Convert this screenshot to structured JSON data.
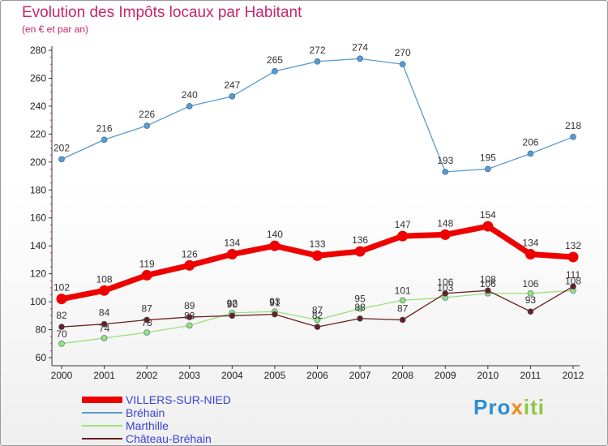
{
  "header": {
    "title": "Evolution des Impôts locaux par Habitant",
    "subtitle": "(en € et par an)"
  },
  "logo": {
    "text": "Proxiti",
    "colors": [
      "#2b8fd6",
      "#f08a1c",
      "#8cc63f"
    ]
  },
  "chart_data": {
    "type": "line",
    "title": "Evolution des Impôts locaux par Habitant",
    "subtitle": "(en € et par an)",
    "xlabel": "",
    "ylabel": "",
    "x": [
      "2000",
      "2001",
      "2002",
      "2003",
      "2004",
      "2005",
      "2006",
      "2007",
      "2008",
      "2009",
      "2010",
      "2011",
      "2012"
    ],
    "ylim": [
      60,
      280
    ],
    "yticks": [
      60,
      80,
      100,
      120,
      140,
      160,
      180,
      200,
      220,
      240,
      260,
      280
    ],
    "grid": false,
    "legend_position": "bottom-left",
    "series": [
      {
        "name": "VILLERS-SUR-NIED",
        "color": "#ee0000",
        "values": [
          102,
          108,
          119,
          126,
          134,
          140,
          133,
          136,
          147,
          148,
          154,
          134,
          132
        ]
      },
      {
        "name": "Bréhain",
        "color": "#5a9bd0",
        "values": [
          202,
          216,
          226,
          240,
          247,
          265,
          272,
          274,
          270,
          193,
          195,
          206,
          218
        ]
      },
      {
        "name": "Marthille",
        "color": "#9be07a",
        "values": [
          70,
          74,
          78,
          83,
          92,
          93,
          87,
          95,
          101,
          103,
          106,
          106,
          108
        ]
      },
      {
        "name": "Château-Bréhain",
        "color": "#6b1e1e",
        "values": [
          82,
          84,
          87,
          89,
          90,
          91,
          82,
          88,
          87,
          106,
          108,
          93,
          111
        ]
      }
    ]
  }
}
